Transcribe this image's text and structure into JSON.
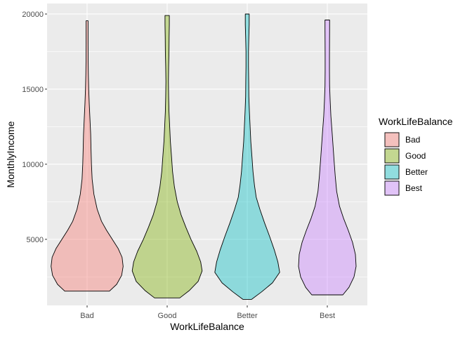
{
  "chart_data": {
    "type": "violin",
    "xlabel": "WorkLifeBalance",
    "ylabel": "MonthlyIncome",
    "categories": [
      "Bad",
      "Good",
      "Better",
      "Best"
    ],
    "y_ticks": [
      5000,
      10000,
      15000,
      20000
    ],
    "ylim": [
      600,
      20700
    ],
    "grid": true,
    "legend": {
      "title": "WorkLifeBalance",
      "position": "right",
      "entries": [
        "Bad",
        "Good",
        "Better",
        "Best"
      ]
    },
    "colors": [
      "#F8766D",
      "#7CAE00",
      "#00BFC4",
      "#C77CFF"
    ],
    "series": [
      {
        "category": "Bad",
        "min": 1550,
        "max": 19550,
        "profile": [
          [
            1550,
            0.62
          ],
          [
            2000,
            0.82
          ],
          [
            2600,
            0.96
          ],
          [
            3200,
            1.0
          ],
          [
            3800,
            0.97
          ],
          [
            4400,
            0.86
          ],
          [
            5000,
            0.7
          ],
          [
            5600,
            0.54
          ],
          [
            6200,
            0.4
          ],
          [
            7000,
            0.28
          ],
          [
            8000,
            0.19
          ],
          [
            9000,
            0.14
          ],
          [
            10000,
            0.12
          ],
          [
            11000,
            0.11
          ],
          [
            12000,
            0.1
          ],
          [
            13000,
            0.08
          ],
          [
            14000,
            0.06
          ],
          [
            15000,
            0.045
          ],
          [
            16000,
            0.035
          ],
          [
            17000,
            0.03
          ],
          [
            18000,
            0.028
          ],
          [
            19000,
            0.028
          ],
          [
            19550,
            0.028
          ]
        ]
      },
      {
        "category": "Good",
        "min": 1100,
        "max": 19900,
        "profile": [
          [
            1100,
            0.35
          ],
          [
            1600,
            0.62
          ],
          [
            2200,
            0.86
          ],
          [
            2900,
            0.97
          ],
          [
            3500,
            0.93
          ],
          [
            4200,
            0.82
          ],
          [
            5000,
            0.66
          ],
          [
            5800,
            0.52
          ],
          [
            6600,
            0.39
          ],
          [
            7500,
            0.28
          ],
          [
            8500,
            0.2
          ],
          [
            9500,
            0.15
          ],
          [
            10500,
            0.12
          ],
          [
            11500,
            0.09
          ],
          [
            12500,
            0.07
          ],
          [
            13500,
            0.05
          ],
          [
            14500,
            0.04
          ],
          [
            15500,
            0.035
          ],
          [
            16500,
            0.04
          ],
          [
            17500,
            0.05
          ],
          [
            18500,
            0.055
          ],
          [
            19300,
            0.06
          ],
          [
            19900,
            0.06
          ]
        ]
      },
      {
        "category": "Better",
        "min": 1000,
        "max": 20000,
        "profile": [
          [
            1000,
            0.12
          ],
          [
            1500,
            0.4
          ],
          [
            2100,
            0.7
          ],
          [
            2800,
            0.9
          ],
          [
            3500,
            0.85
          ],
          [
            4300,
            0.75
          ],
          [
            5200,
            0.62
          ],
          [
            6100,
            0.48
          ],
          [
            7000,
            0.35
          ],
          [
            7800,
            0.25
          ],
          [
            8600,
            0.2
          ],
          [
            9500,
            0.16
          ],
          [
            10500,
            0.13
          ],
          [
            11500,
            0.1
          ],
          [
            12500,
            0.08
          ],
          [
            13500,
            0.06
          ],
          [
            14500,
            0.045
          ],
          [
            15500,
            0.04
          ],
          [
            16500,
            0.035
          ],
          [
            17500,
            0.035
          ],
          [
            18500,
            0.045
          ],
          [
            19300,
            0.055
          ],
          [
            20000,
            0.055
          ]
        ]
      },
      {
        "category": "Best",
        "min": 1300,
        "max": 19600,
        "profile": [
          [
            1300,
            0.43
          ],
          [
            1800,
            0.6
          ],
          [
            2500,
            0.74
          ],
          [
            3200,
            0.8
          ],
          [
            4000,
            0.78
          ],
          [
            4800,
            0.7
          ],
          [
            5600,
            0.58
          ],
          [
            6400,
            0.45
          ],
          [
            7200,
            0.34
          ],
          [
            8200,
            0.26
          ],
          [
            9200,
            0.22
          ],
          [
            10200,
            0.19
          ],
          [
            11200,
            0.16
          ],
          [
            12200,
            0.13
          ],
          [
            13200,
            0.1
          ],
          [
            14200,
            0.08
          ],
          [
            15200,
            0.065
          ],
          [
            16200,
            0.06
          ],
          [
            17200,
            0.06
          ],
          [
            18200,
            0.062
          ],
          [
            19000,
            0.065
          ],
          [
            19600,
            0.065
          ]
        ]
      }
    ]
  }
}
